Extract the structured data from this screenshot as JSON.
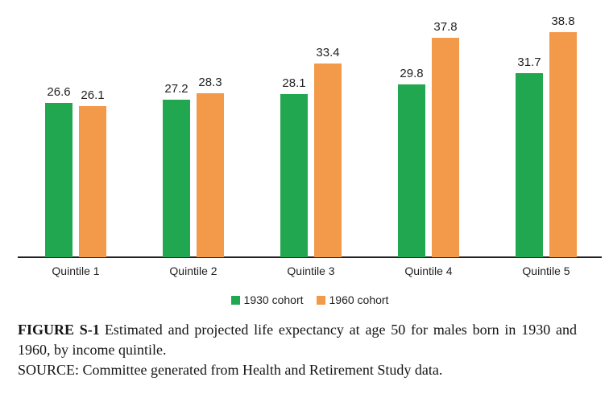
{
  "chart_data": {
    "type": "bar",
    "title": "",
    "categories": [
      "Quintile 1",
      "Quintile 2",
      "Quintile 3",
      "Quintile 4",
      "Quintile 5"
    ],
    "series": [
      {
        "name": "1930 cohort",
        "color": "#21a74f",
        "values": [
          26.6,
          27.2,
          28.1,
          29.8,
          31.7
        ]
      },
      {
        "name": "1960 cohort",
        "color": "#f3994a",
        "values": [
          26.1,
          28.3,
          33.4,
          37.8,
          38.8
        ]
      }
    ],
    "value_labels_shown": true,
    "xlabel": "",
    "ylabel": "",
    "ylim": [
      0,
      40
    ],
    "grid": false,
    "y_axis_shown": false,
    "x_baseline_shown": true,
    "legend_position": "bottom-center"
  },
  "caption": {
    "figure_label": "FIGURE S-1",
    "figure_text": "Estimated and projected life expectancy at age 50 for males born in 1930 and 1960, by income quintile.",
    "source_text": "SOURCE: Committee generated from Health and Retirement Study data."
  },
  "colors": {
    "bar_green": "#21a74f",
    "bar_orange": "#f3994a",
    "text": "#231f20",
    "axis": "#231f20",
    "background": "#ffffff"
  }
}
